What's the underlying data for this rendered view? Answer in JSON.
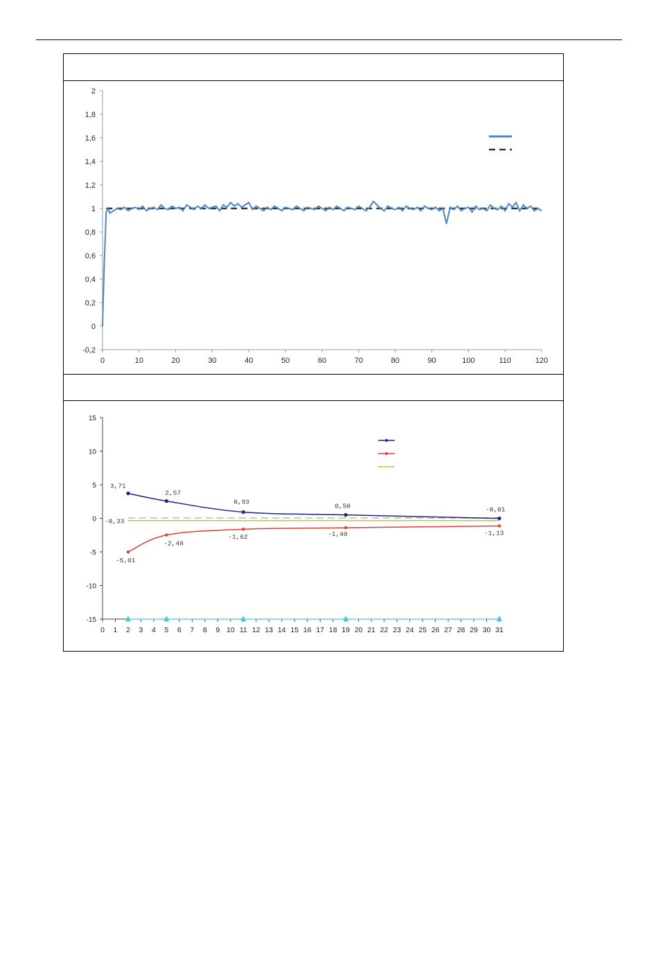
{
  "chart_data": [
    {
      "type": "line",
      "title": "",
      "xlabel": "",
      "ylabel": "",
      "xlim": [
        0,
        120
      ],
      "ylim": [
        -0.2,
        2
      ],
      "xticks": [
        0,
        10,
        20,
        30,
        40,
        50,
        60,
        70,
        80,
        90,
        100,
        110,
        120
      ],
      "yticks": [
        "-0,2",
        "0",
        "0,2",
        "0,4",
        "0,6",
        "0,8",
        "1",
        "1,2",
        "1,4",
        "1,6",
        "1,8",
        "2"
      ],
      "grid": false,
      "legend": "top-right",
      "series": [
        {
          "style": "solid",
          "color": "#4a86c5",
          "x": [
            0,
            0.5,
            1,
            1.5,
            2,
            3,
            4,
            5,
            6,
            7,
            8,
            9,
            10,
            11,
            12,
            13,
            14,
            15,
            16,
            17,
            18,
            19,
            20,
            21,
            22,
            23,
            24,
            25,
            26,
            27,
            28,
            29,
            30,
            31,
            32,
            33,
            34,
            35,
            36,
            37,
            38,
            39,
            40,
            41,
            42,
            43,
            44,
            45,
            46,
            47,
            48,
            49,
            50,
            51,
            52,
            53,
            54,
            55,
            56,
            57,
            58,
            59,
            60,
            61,
            62,
            63,
            64,
            65,
            66,
            67,
            68,
            69,
            70,
            71,
            72,
            73,
            74,
            75,
            76,
            77,
            78,
            79,
            80,
            81,
            82,
            83,
            84,
            85,
            86,
            87,
            88,
            89,
            90,
            91,
            92,
            93,
            94,
            95,
            96,
            97,
            98,
            99,
            100,
            101,
            102,
            103,
            104,
            105,
            106,
            107,
            108,
            109,
            110,
            111,
            112,
            113,
            114,
            115,
            116,
            117,
            118,
            119,
            120
          ],
          "y": [
            0,
            0.55,
            0.97,
            1.0,
            0.96,
            0.98,
            1.0,
            0.99,
            1.01,
            0.98,
            1.0,
            1.01,
            0.99,
            1.02,
            0.98,
            1.0,
            1.01,
            0.99,
            1.03,
            1.0,
            0.99,
            1.02,
            1.0,
            1.01,
            0.98,
            1.03,
            1.01,
            0.99,
            1.02,
            1.0,
            1.03,
            1.0,
            1.01,
            1.02,
            0.98,
            1.03,
            1.01,
            1.05,
            1.02,
            1.04,
            1.01,
            1.03,
            1.05,
            0.99,
            1.02,
            1.0,
            0.98,
            1.01,
            0.99,
            1.02,
            1.0,
            0.98,
            1.01,
            1.0,
            0.99,
            1.02,
            1.0,
            0.98,
            1.01,
            1.0,
            0.99,
            1.02,
            1.0,
            0.98,
            1.01,
            0.99,
            1.02,
            1.0,
            0.98,
            1.01,
            1.0,
            0.99,
            1.02,
            1.0,
            0.98,
            1.01,
            1.06,
            1.03,
            1.0,
            0.98,
            1.02,
            1.0,
            0.99,
            1.01,
            0.98,
            1.02,
            1.0,
            0.99,
            1.01,
            0.98,
            1.02,
            1.0,
            0.99,
            1.01,
            0.98,
            1.0,
            0.87,
            1.01,
            0.99,
            1.02,
            0.98,
            1.0,
            1.01,
            0.97,
            1.02,
            0.99,
            1.0,
            0.98,
            1.03,
            1.0,
            0.99,
            1.02,
            0.98,
            1.04,
            1.01,
            1.05,
            0.98,
            1.03,
            1.0,
            1.02,
            0.98,
            1.0,
            0.98
          ]
        },
        {
          "style": "dashed",
          "color": "#333333",
          "x": [
            1,
            120
          ],
          "y": [
            1,
            1
          ]
        }
      ]
    },
    {
      "type": "line",
      "title": "",
      "xlabel": "",
      "ylabel": "",
      "xlim": [
        0,
        31
      ],
      "ylim": [
        -15,
        15
      ],
      "xticks": [
        0,
        1,
        2,
        3,
        4,
        5,
        6,
        7,
        8,
        9,
        10,
        11,
        12,
        13,
        14,
        15,
        16,
        17,
        18,
        19,
        20,
        21,
        22,
        23,
        24,
        25,
        26,
        27,
        28,
        29,
        30,
        31
      ],
      "yticks": [
        "-15",
        "-10",
        "-5",
        "0",
        "5",
        "10",
        "15"
      ],
      "grid": false,
      "legend": "top-right",
      "series": [
        {
          "color": "#1a237e",
          "x": [
            2,
            5,
            11,
            19,
            31
          ],
          "y": [
            3.71,
            2.57,
            0.93,
            0.5,
            -0.01
          ],
          "labels": [
            "3,71",
            "2,57",
            "0,93",
            "0,50",
            "-0,01"
          ]
        },
        {
          "color": "#e53935",
          "x": [
            2,
            5,
            11,
            19,
            31
          ],
          "y": [
            -5.01,
            -2.48,
            -1.62,
            -1.4,
            -1.13
          ],
          "labels": [
            "-5,01",
            "-2,48",
            "-1,62",
            "-1,40",
            "-1,13"
          ]
        },
        {
          "color": "#c0ca33",
          "x": [
            2,
            31
          ],
          "y": [
            -0.33,
            -0.33
          ],
          "labels": [
            "-0,33"
          ]
        },
        {
          "style": "dashed",
          "color": "#c8c8c8",
          "x": [
            2,
            31
          ],
          "y": [
            0.05,
            0.05
          ]
        },
        {
          "color": "#4fc3d9",
          "marker": "triangle",
          "x": [
            2,
            5,
            11,
            19,
            31
          ],
          "y": [
            -15,
            -15,
            -15,
            -15,
            -15
          ]
        }
      ]
    }
  ]
}
